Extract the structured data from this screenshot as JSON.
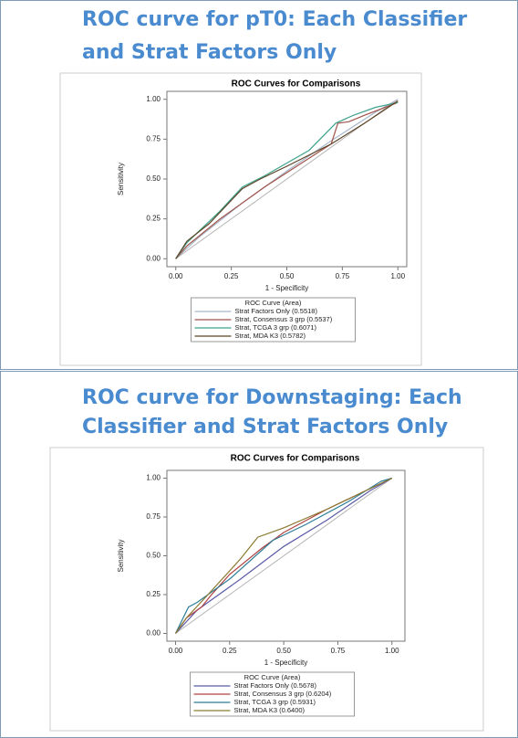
{
  "chart_data": [
    {
      "type": "line",
      "heading": [
        "ROC curve for pT0: Each Classifier",
        "and Strat Factors Only"
      ],
      "title": "ROC Curves for Comparisons",
      "xlabel": "1 - Specificity",
      "ylabel": "Sensitivity",
      "legend_title": "ROC Curve (Area)",
      "xlim": [
        -0.04,
        1.04
      ],
      "ylim": [
        -0.05,
        1.05
      ],
      "xticks": [
        {
          "value": 0,
          "label": "0.00"
        },
        {
          "value": 0.25,
          "label": "0.25"
        },
        {
          "value": 0.5,
          "label": "0.50"
        },
        {
          "value": 0.75,
          "label": "0.75"
        },
        {
          "value": 1,
          "label": "1.00"
        }
      ],
      "yticks": [
        {
          "value": 0,
          "label": "0.00"
        },
        {
          "value": 0.25,
          "label": "0.25"
        },
        {
          "value": 0.5,
          "label": "0.50"
        },
        {
          "value": 0.75,
          "label": "0.75"
        },
        {
          "value": 1,
          "label": "1.00"
        }
      ],
      "series": [
        {
          "name": "Strat Factors Only  (0.5518)",
          "color": "#a9b8cc",
          "x": [
            0,
            0.1,
            0.3,
            0.5,
            0.7,
            0.9,
            1
          ],
          "values": [
            0,
            0.13,
            0.35,
            0.55,
            0.74,
            0.92,
            1
          ]
        },
        {
          "name": "Strat, Consensus 3 grp  (0.5537)",
          "color": "#a0524a",
          "x": [
            0,
            0.05,
            0.2,
            0.4,
            0.6,
            0.7,
            0.73,
            0.78,
            0.85,
            1
          ],
          "values": [
            0,
            0.08,
            0.25,
            0.45,
            0.63,
            0.72,
            0.85,
            0.86,
            0.9,
            0.98
          ]
        },
        {
          "name": "Strat, TCGA 3 grp  (0.6071)",
          "color": "#3fa38c",
          "x": [
            0,
            0.05,
            0.2,
            0.3,
            0.4,
            0.6,
            0.72,
            0.8,
            0.9,
            1
          ],
          "values": [
            0,
            0.1,
            0.3,
            0.45,
            0.52,
            0.68,
            0.85,
            0.9,
            0.95,
            0.98
          ]
        },
        {
          "name": "Strat, MDA K3  (0.5782)",
          "color": "#5b4326",
          "x": [
            0,
            0.05,
            0.15,
            0.3,
            0.38,
            0.5,
            0.7,
            0.85,
            1
          ],
          "values": [
            0,
            0.11,
            0.22,
            0.44,
            0.5,
            0.58,
            0.72,
            0.85,
            0.99
          ]
        }
      ]
    },
    {
      "type": "line",
      "heading": [
        "ROC curve for Downstaging: Each",
        "Classifier and Strat Factors Only"
      ],
      "title": "ROC Curves for Comparisons",
      "xlabel": "1 - Specificity",
      "ylabel": "Sensitivity",
      "legend_title": "ROC Curve (Area)",
      "xlim": [
        -0.04,
        1.06
      ],
      "ylim": [
        -0.05,
        1.05
      ],
      "xticks": [
        {
          "value": 0,
          "label": "0.00"
        },
        {
          "value": 0.25,
          "label": "0.25"
        },
        {
          "value": 0.5,
          "label": "0.50"
        },
        {
          "value": 0.75,
          "label": "0.75"
        },
        {
          "value": 1,
          "label": "1.00"
        }
      ],
      "yticks": [
        {
          "value": 0,
          "label": "0.00"
        },
        {
          "value": 0.25,
          "label": "0.25"
        },
        {
          "value": 0.5,
          "label": "0.50"
        },
        {
          "value": 0.75,
          "label": "0.75"
        },
        {
          "value": 1,
          "label": "1.00"
        }
      ],
      "series": [
        {
          "name": "Strat Factors Only  (0.5678)",
          "color": "#5a5aa8",
          "x": [
            0,
            0.1,
            0.3,
            0.5,
            0.7,
            0.9,
            1
          ],
          "values": [
            0,
            0.15,
            0.35,
            0.56,
            0.73,
            0.92,
            1
          ]
        },
        {
          "name": "Strat, Consensus 3 grp  (0.6204)",
          "color": "#b04040",
          "x": [
            0,
            0.05,
            0.12,
            0.16,
            0.25,
            0.4,
            0.5,
            0.7,
            0.85,
            1
          ],
          "values": [
            0,
            0.1,
            0.17,
            0.24,
            0.38,
            0.55,
            0.65,
            0.8,
            0.9,
            1
          ]
        },
        {
          "name": "Strat, TCGA 3 grp  (0.5931)",
          "color": "#2e7d9a",
          "x": [
            0,
            0.06,
            0.1,
            0.25,
            0.45,
            0.6,
            0.8,
            0.95,
            1
          ],
          "values": [
            0,
            0.17,
            0.2,
            0.35,
            0.6,
            0.7,
            0.85,
            0.98,
            1
          ]
        },
        {
          "name": "Strat, MDA K3  (0.6400)",
          "color": "#8a7a30",
          "x": [
            0,
            0.05,
            0.15,
            0.3,
            0.38,
            0.5,
            0.7,
            0.85,
            1
          ],
          "values": [
            0,
            0.1,
            0.25,
            0.48,
            0.62,
            0.68,
            0.8,
            0.9,
            1
          ]
        }
      ]
    }
  ]
}
